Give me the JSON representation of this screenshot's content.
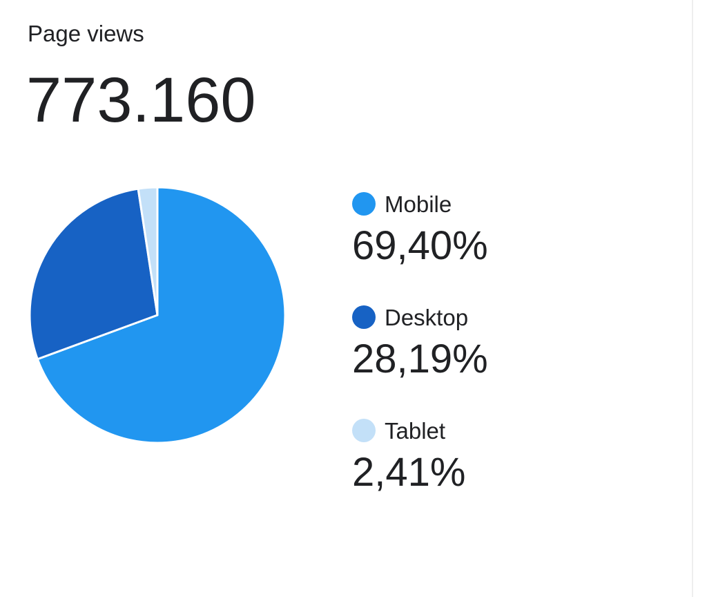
{
  "chart_data": {
    "type": "pie",
    "title": "Page views",
    "total": "773.160",
    "categories": [
      "Mobile",
      "Desktop",
      "Tablet"
    ],
    "values": [
      69.4,
      28.19,
      2.41
    ],
    "value_labels": [
      "69,40%",
      "28,19%",
      "2,41%"
    ],
    "colors": [
      "#2196f0",
      "#1762c4",
      "#c3e0f8"
    ]
  }
}
